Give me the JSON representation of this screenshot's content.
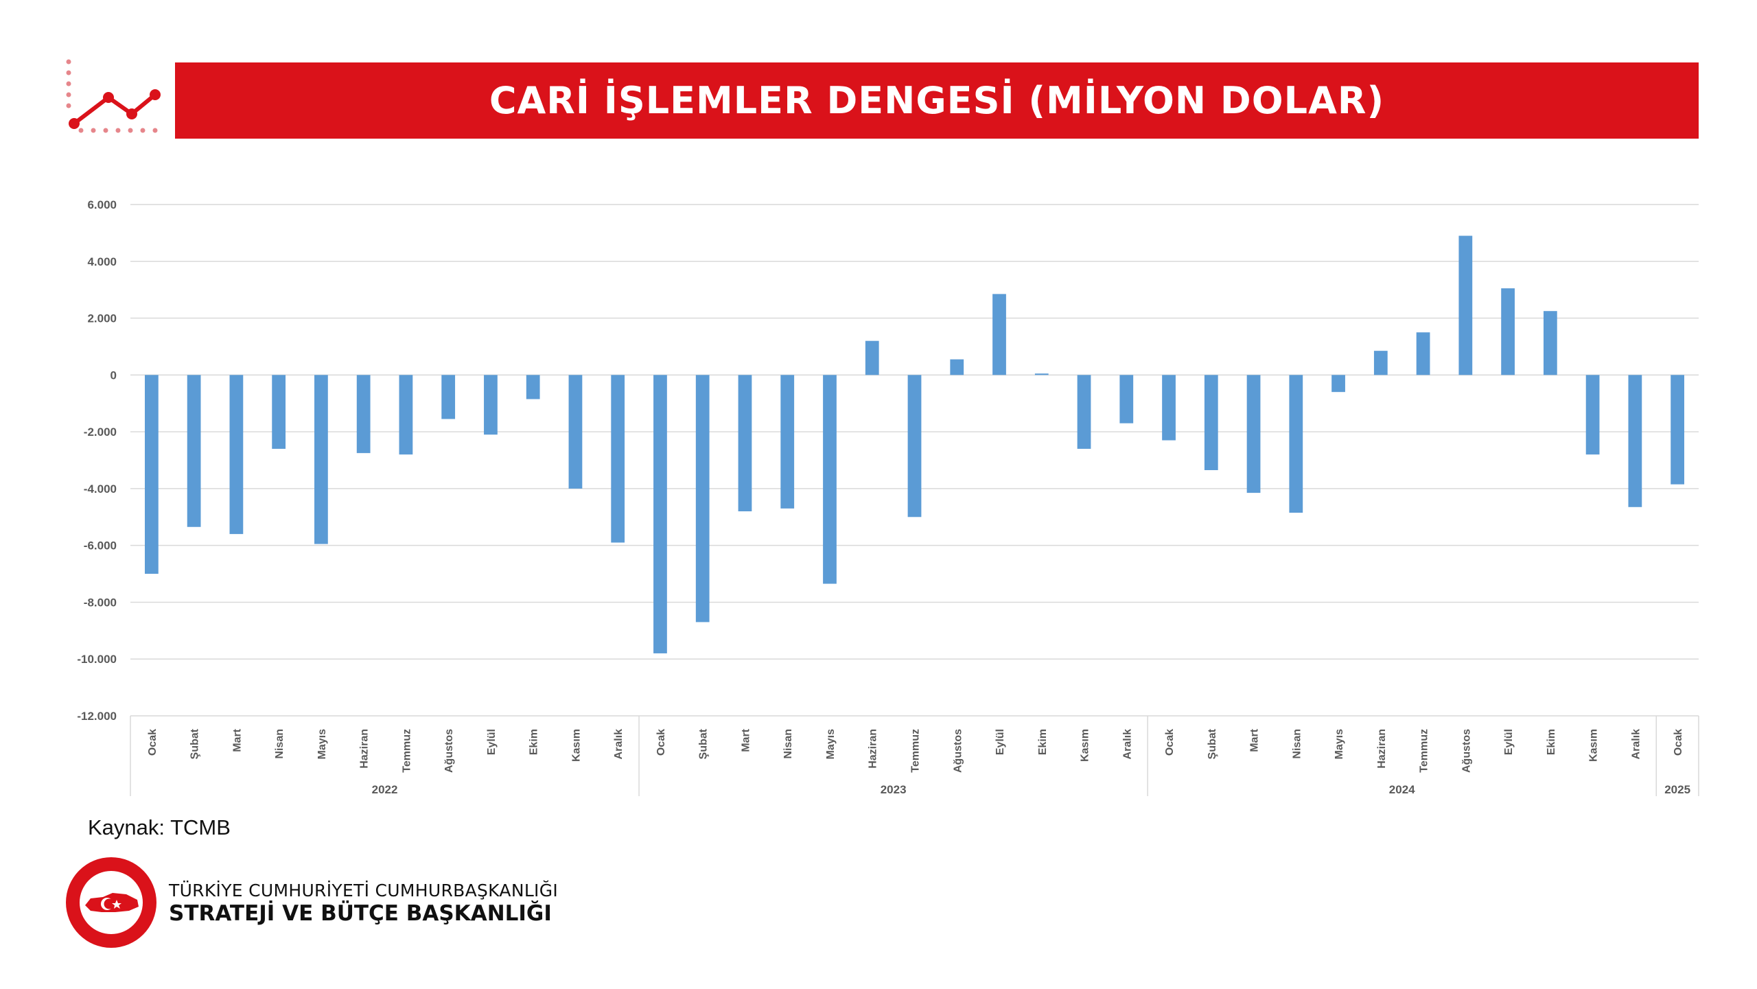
{
  "header": {
    "title": "CARİ İŞLEMLER DENGESİ (MİLYON DOLAR)",
    "banner_color": "#DA121A",
    "logo_icon": "trend-line-icon"
  },
  "chart_data": {
    "type": "bar",
    "title": "CARİ İŞLEMLER DENGESİ (MİLYON DOLAR)",
    "ylim": [
      -12000,
      6000
    ],
    "yticks": [
      6000,
      4000,
      2000,
      0,
      -2000,
      -4000,
      -6000,
      -8000,
      -10000,
      -12000
    ],
    "ytick_labels": [
      "6.000",
      "4.000",
      "2.000",
      "0",
      "-2.000",
      "-4.000",
      "-6.000",
      "-8.000",
      "-10.000",
      "-12.000"
    ],
    "grid": true,
    "bar_color": "#5B9BD5",
    "groups": [
      {
        "year": "2022",
        "months": [
          "Ocak",
          "Şubat",
          "Mart",
          "Nisan",
          "Mayıs",
          "Haziran",
          "Temmuz",
          "Ağustos",
          "Eylül",
          "Ekim",
          "Kasım",
          "Aralık"
        ],
        "values": [
          -7000,
          -5350,
          -5600,
          -2600,
          -5950,
          -2750,
          -2800,
          -1550,
          -2100,
          -850,
          -4000,
          -5900
        ]
      },
      {
        "year": "2023",
        "months": [
          "Ocak",
          "Şubat",
          "Mart",
          "Nisan",
          "Mayıs",
          "Haziran",
          "Temmuz",
          "Ağustos",
          "Eylül",
          "Ekim",
          "Kasım",
          "Aralık"
        ],
        "values": [
          -9800,
          -8700,
          -4800,
          -4700,
          -7350,
          1200,
          -5000,
          550,
          2850,
          50,
          -2600,
          -1700
        ]
      },
      {
        "year": "2024",
        "months": [
          "Ocak",
          "Şubat",
          "Mart",
          "Nisan",
          "Mayıs",
          "Haziran",
          "Temmuz",
          "Ağustos",
          "Eylül",
          "Ekim",
          "Kasım",
          "Aralık"
        ],
        "values": [
          -2300,
          -3350,
          -4150,
          -4850,
          -600,
          850,
          1500,
          4900,
          3050,
          2250,
          -2800,
          -4650
        ]
      },
      {
        "year": "2025",
        "months": [
          "Ocak"
        ],
        "values": [
          -3850
        ]
      }
    ]
  },
  "footer": {
    "source": "Kaynak: TCMB",
    "org_line1": "TÜRKİYE CUMHURİYETİ CUMHURBAŞKANLIĞI",
    "org_line2": "STRATEJİ VE BÜTÇE BAŞKANLIĞI",
    "seal_icon": "institution-seal-icon"
  }
}
